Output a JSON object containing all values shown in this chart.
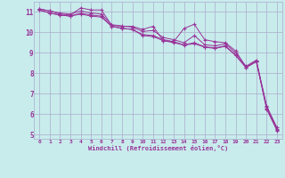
{
  "xlabel": "Windchill (Refroidissement éolien,°C)",
  "bg_color": "#c8ecec",
  "grid_color": "#aaaacc",
  "line_color": "#993399",
  "xlim": [
    -0.5,
    23.5
  ],
  "ylim": [
    4.8,
    11.5
  ],
  "xticks": [
    0,
    1,
    2,
    3,
    4,
    5,
    6,
    7,
    8,
    9,
    10,
    11,
    12,
    13,
    14,
    15,
    16,
    17,
    18,
    19,
    20,
    21,
    22,
    23
  ],
  "yticks": [
    5,
    6,
    7,
    8,
    9,
    10,
    11
  ],
  "series": [
    [
      11.15,
      11.05,
      10.9,
      10.85,
      11.2,
      11.1,
      11.1,
      10.35,
      10.3,
      10.3,
      10.15,
      10.3,
      9.6,
      9.55,
      10.2,
      10.4,
      9.65,
      9.55,
      9.5,
      9.1,
      8.3,
      8.6,
      6.4,
      5.35
    ],
    [
      11.1,
      10.95,
      10.85,
      10.8,
      10.95,
      10.85,
      10.8,
      10.3,
      10.2,
      10.15,
      9.9,
      9.85,
      9.65,
      9.55,
      9.4,
      9.5,
      9.3,
      9.25,
      9.35,
      8.9,
      8.3,
      8.6,
      6.3,
      5.25
    ],
    [
      11.15,
      11.05,
      10.95,
      10.9,
      11.05,
      10.95,
      10.9,
      10.38,
      10.32,
      10.26,
      10.05,
      10.1,
      9.75,
      9.65,
      9.5,
      9.85,
      9.4,
      9.35,
      9.45,
      9.0,
      8.35,
      8.65,
      6.35,
      5.3
    ],
    [
      11.1,
      10.95,
      10.85,
      10.8,
      10.9,
      10.8,
      10.75,
      10.3,
      10.2,
      10.15,
      9.85,
      9.8,
      9.6,
      9.5,
      9.38,
      9.45,
      9.28,
      9.22,
      9.32,
      8.87,
      8.28,
      8.57,
      6.25,
      5.2
    ]
  ]
}
